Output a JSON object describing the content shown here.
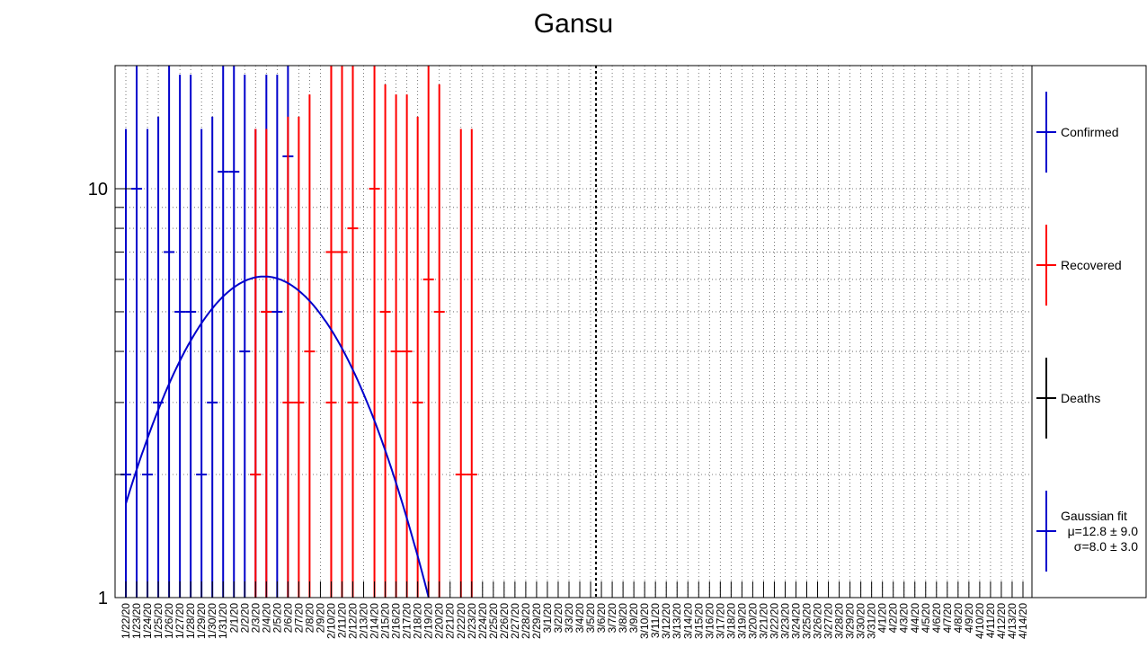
{
  "chart_data": {
    "type": "scatter",
    "title": "Gansu",
    "xlabel": "",
    "ylabel": "",
    "y_scale": "log",
    "ylim": [
      1,
      20
    ],
    "y_tick_labels": [
      "1",
      "10"
    ],
    "grid": true,
    "legend_position": "right",
    "x_tick_labels": [
      "1/22/20",
      "1/23/20",
      "1/24/20",
      "1/25/20",
      "1/26/20",
      "1/27/20",
      "1/28/20",
      "1/29/20",
      "1/30/20",
      "1/31/20",
      "2/1/20",
      "2/2/20",
      "2/3/20",
      "2/4/20",
      "2/5/20",
      "2/6/20",
      "2/7/20",
      "2/8/20",
      "2/9/20",
      "2/10/20",
      "2/11/20",
      "2/12/20",
      "2/13/20",
      "2/14/20",
      "2/15/20",
      "2/16/20",
      "2/17/20",
      "2/18/20",
      "2/19/20",
      "2/20/20",
      "2/21/20",
      "2/22/20",
      "2/23/20",
      "2/24/20",
      "2/25/20",
      "2/26/20",
      "2/27/20",
      "2/28/20",
      "2/29/20",
      "3/1/20",
      "3/2/20",
      "3/3/20",
      "3/4/20",
      "3/5/20",
      "3/6/20",
      "3/7/20",
      "3/8/20",
      "3/9/20",
      "3/10/20",
      "3/11/20",
      "3/12/20",
      "3/13/20",
      "3/14/20",
      "3/15/20",
      "3/16/20",
      "3/17/20",
      "3/18/20",
      "3/19/20",
      "3/20/20",
      "3/21/20",
      "3/22/20",
      "3/23/20",
      "3/24/20",
      "3/25/20",
      "3/26/20",
      "3/27/20",
      "3/28/20",
      "3/29/20",
      "3/30/20",
      "3/31/20",
      "4/1/20",
      "4/2/20",
      "4/3/20",
      "4/4/20",
      "4/5/20",
      "4/6/20",
      "4/7/20",
      "4/8/20",
      "4/9/20",
      "4/10/20",
      "4/11/20",
      "4/12/20",
      "4/13/20",
      "4/14/20"
    ],
    "vertical_marker_category": "3/5/20",
    "series": [
      {
        "name": "Confirmed",
        "color": "#0000cc",
        "points": [
          {
            "x": "1/22/20",
            "y": 2,
            "err": 14
          },
          {
            "x": "1/23/20",
            "y": 10,
            "err": 20
          },
          {
            "x": "1/24/20",
            "y": 2,
            "err": 14
          },
          {
            "x": "1/25/20",
            "y": 3,
            "err": 15
          },
          {
            "x": "1/26/20",
            "y": 7,
            "err": 20
          },
          {
            "x": "1/27/20",
            "y": 5,
            "err": 19
          },
          {
            "x": "1/28/20",
            "y": 5,
            "err": 19
          },
          {
            "x": "1/29/20",
            "y": 2,
            "err": 14
          },
          {
            "x": "1/30/20",
            "y": 3,
            "err": 15
          },
          {
            "x": "1/31/20",
            "y": 11,
            "err": 20
          },
          {
            "x": "2/1/20",
            "y": 11,
            "err": 20
          },
          {
            "x": "2/2/20",
            "y": 4,
            "err": 19
          },
          {
            "x": "2/3/20",
            "y": 2,
            "err": 14
          },
          {
            "x": "2/4/20",
            "y": 5,
            "err": 19
          },
          {
            "x": "2/5/20",
            "y": 5,
            "err": 19
          },
          {
            "x": "2/6/20",
            "y": 12,
            "err": 20
          }
        ]
      },
      {
        "name": "Recovered",
        "color": "#ff0000",
        "points": [
          {
            "x": "2/3/20",
            "y": 2,
            "err": 14
          },
          {
            "x": "2/4/20",
            "y": 5,
            "err": 14
          },
          {
            "x": "2/6/20",
            "y": 3,
            "err": 15
          },
          {
            "x": "2/7/20",
            "y": 3,
            "err": 15
          },
          {
            "x": "2/8/20",
            "y": 4,
            "err": 17
          },
          {
            "x": "2/10/20",
            "y": 3,
            "err": 20
          },
          {
            "x": "2/10/20",
            "y": 7,
            "err": 20
          },
          {
            "x": "2/11/20",
            "y": 7,
            "err": 20
          },
          {
            "x": "2/12/20",
            "y": 8,
            "err": 20
          },
          {
            "x": "2/12/20",
            "y": 3,
            "err": 20
          },
          {
            "x": "2/14/20",
            "y": 10,
            "err": 20
          },
          {
            "x": "2/15/20",
            "y": 5,
            "err": 18
          },
          {
            "x": "2/16/20",
            "y": 4,
            "err": 17
          },
          {
            "x": "2/17/20",
            "y": 4,
            "err": 17
          },
          {
            "x": "2/18/20",
            "y": 3,
            "err": 15
          },
          {
            "x": "2/19/20",
            "y": 6,
            "err": 20
          },
          {
            "x": "2/20/20",
            "y": 5,
            "err": 18
          },
          {
            "x": "2/22/20",
            "y": 2,
            "err": 14
          },
          {
            "x": "2/23/20",
            "y": 2,
            "err": 14
          }
        ]
      },
      {
        "name": "Deaths",
        "color": "#000000",
        "points": []
      }
    ],
    "fit": {
      "name": "Gaussian fit",
      "color": "#0000cc",
      "amplitude": 6.1,
      "mean": 12.8,
      "sigma": 8.0,
      "stats": [
        "μ=12.8 ± 9.0",
        "σ=8.0 ± 3.0"
      ]
    }
  }
}
